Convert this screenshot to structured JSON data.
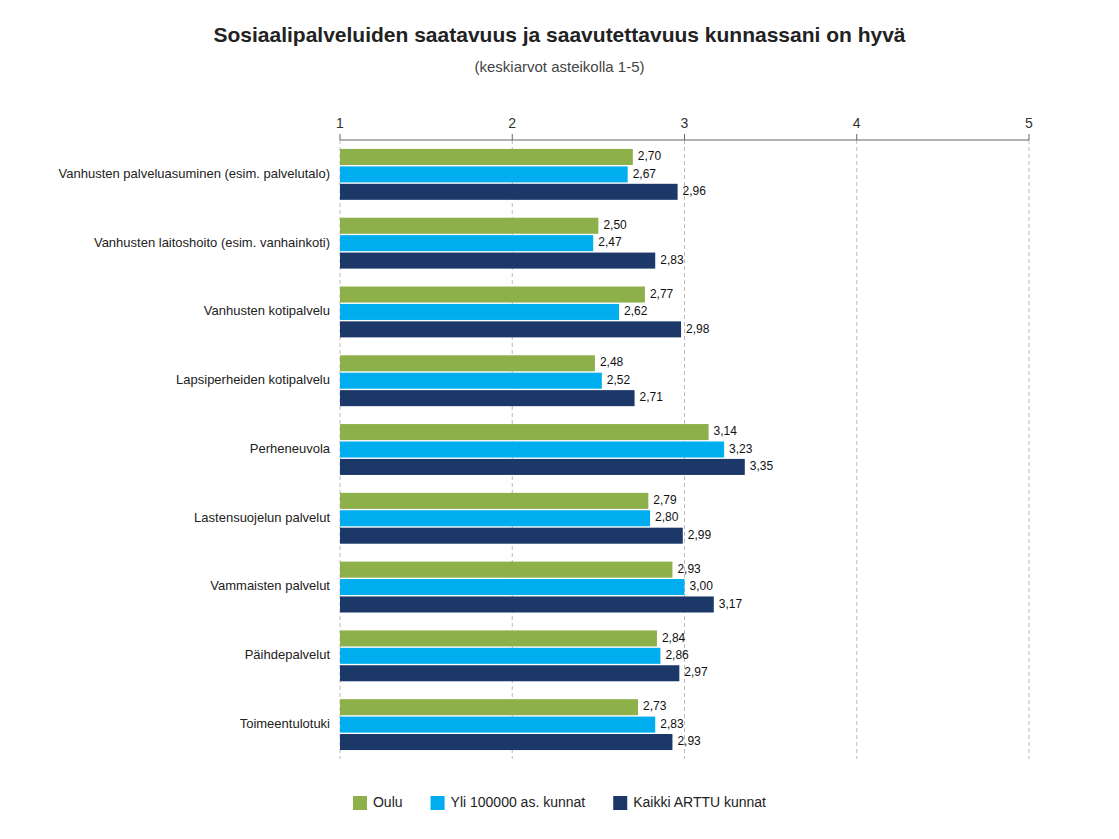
{
  "chart_data": {
    "type": "bar",
    "orientation": "horizontal",
    "title": "Sosiaalipalveluiden saatavuus ja saavutettavuus kunnassani on hyvä",
    "subtitle": "(keskiarvot asteikolla 1-5)",
    "categories": [
      "Vanhusten palveluasuminen (esim. palvelutalo)",
      "Vanhusten laitoshoito (esim. vanhainkoti)",
      "Vanhusten kotipalvelu",
      "Lapsiperheiden kotipalvelu",
      "Perheneuvola",
      "Lastensuojelun palvelut",
      "Vammaisten palvelut",
      "Päihdepalvelut",
      "Toimeentulotuki"
    ],
    "series": [
      {
        "name": "Oulu",
        "color": "#8DB04A",
        "values": [
          2.7,
          2.5,
          2.77,
          2.48,
          3.14,
          2.79,
          2.93,
          2.84,
          2.73
        ],
        "value_labels": [
          "2,70",
          "2,50",
          "2,77",
          "2,48",
          "3,14",
          "2,79",
          "2,93",
          "2,84",
          "2,73"
        ]
      },
      {
        "name": "Yli 100000 as. kunnat",
        "color": "#00AEEF",
        "values": [
          2.67,
          2.47,
          2.62,
          2.52,
          3.23,
          2.8,
          3.0,
          2.86,
          2.83
        ],
        "value_labels": [
          "2,67",
          "2,47",
          "2,62",
          "2,52",
          "3,23",
          "2,80",
          "3,00",
          "2,86",
          "2,83"
        ]
      },
      {
        "name": "Kaikki ARTTU kunnat",
        "color": "#1B3869",
        "values": [
          2.96,
          2.83,
          2.98,
          2.71,
          3.35,
          2.99,
          3.17,
          2.97,
          2.93
        ],
        "value_labels": [
          "2,96",
          "2,83",
          "2,98",
          "2,71",
          "3,35",
          "2,99",
          "3,17",
          "2,97",
          "2,93"
        ]
      }
    ],
    "xlim": [
      1,
      5
    ],
    "xticks": [
      1,
      2,
      3,
      4,
      5
    ],
    "grid": true,
    "data_labels": true,
    "legend": "bottom"
  }
}
